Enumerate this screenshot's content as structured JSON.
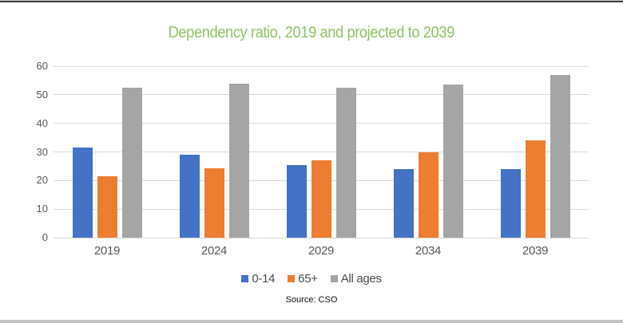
{
  "chart_data": {
    "type": "bar",
    "title": "Dependency ratio, 2019 and projected to 2039",
    "categories": [
      "2019",
      "2024",
      "2029",
      "2034",
      "2039"
    ],
    "series": [
      {
        "name": "0-14",
        "color": "#4472C4",
        "values": [
          31.5,
          29.0,
          25.5,
          24.0,
          24.0
        ]
      },
      {
        "name": "65+",
        "color": "#ED7D31",
        "values": [
          21.4,
          24.4,
          27.0,
          30.0,
          34.1
        ]
      },
      {
        "name": "All ages",
        "color": "#A5A5A5",
        "values": [
          52.6,
          53.8,
          52.6,
          53.6,
          56.8
        ]
      }
    ],
    "ylim": [
      0,
      60
    ],
    "yticks": [
      0,
      10,
      20,
      30,
      40,
      50,
      60
    ],
    "grid": "horizontal",
    "legend_position": "bottom",
    "source": "Source: CSO",
    "colors": {
      "title": "#93C36A",
      "axis_text": "#595959",
      "gridline": "#D9D9D9"
    }
  }
}
